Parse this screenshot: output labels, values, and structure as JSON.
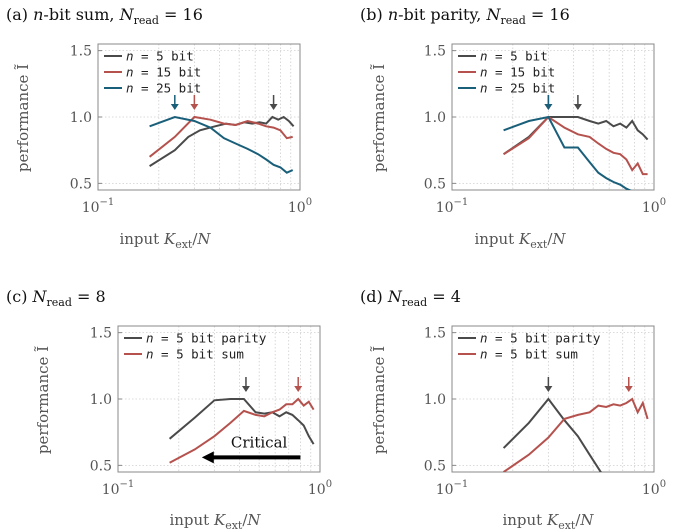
{
  "colors": {
    "gray": "#4a4a4a",
    "red": "#b5524e",
    "blue": "#1a5f7a"
  },
  "chart_data": [
    {
      "id": "a",
      "type": "line",
      "title": "(a) n-bit sum, N_read = 16",
      "title_parts": {
        "prefix": "(a) ",
        "var": "n",
        "mid": "-bit sum, ",
        "N": "N",
        "sub": "read",
        "eq": " = 16"
      },
      "xlabel": "input K_ext/N",
      "ylabel": "performance Ĩ",
      "xscale": "log",
      "xlim": [
        0.1,
        1.0
      ],
      "ylim": [
        0.45,
        1.55
      ],
      "yticks": [
        0.5,
        1.0,
        1.5
      ],
      "ytick_labels": [
        "0.5",
        "1.0",
        "1.5"
      ],
      "show_ylabel": true,
      "legend": "top-left",
      "series": [
        {
          "name": "n = 5 bit",
          "color_key": "gray",
          "x": [
            0.18,
            0.24,
            0.28,
            0.32,
            0.38,
            0.43,
            0.48,
            0.53,
            0.58,
            0.63,
            0.68,
            0.73,
            0.78,
            0.83,
            0.88,
            0.93
          ],
          "y": [
            0.63,
            0.75,
            0.85,
            0.9,
            0.93,
            0.95,
            0.94,
            0.96,
            0.95,
            0.96,
            0.95,
            1.0,
            0.98,
            1.0,
            0.97,
            0.93
          ],
          "arrow_x": 0.74
        },
        {
          "name": "n = 15 bit",
          "color_key": "red",
          "x": [
            0.18,
            0.24,
            0.3,
            0.36,
            0.42,
            0.48,
            0.55,
            0.62,
            0.68,
            0.74,
            0.8,
            0.86,
            0.92
          ],
          "y": [
            0.7,
            0.85,
            1.0,
            0.98,
            0.95,
            0.94,
            0.97,
            0.95,
            0.93,
            0.92,
            0.9,
            0.84,
            0.85
          ],
          "arrow_x": 0.3
        },
        {
          "name": "n = 25 bit",
          "color_key": "blue",
          "x": [
            0.18,
            0.24,
            0.3,
            0.36,
            0.42,
            0.48,
            0.55,
            0.62,
            0.68,
            0.74,
            0.8,
            0.86,
            0.92
          ],
          "y": [
            0.93,
            1.0,
            0.97,
            0.92,
            0.84,
            0.8,
            0.76,
            0.72,
            0.68,
            0.64,
            0.62,
            0.58,
            0.6
          ],
          "arrow_x": 0.24
        }
      ]
    },
    {
      "id": "b",
      "type": "line",
      "title": "(b) n-bit parity, N_read = 16",
      "title_parts": {
        "prefix": "(b) ",
        "var": "n",
        "mid": "-bit parity, ",
        "N": "N",
        "sub": "read",
        "eq": " = 16"
      },
      "xlabel": "input K_ext/N",
      "ylabel": "performance Ĩ",
      "xscale": "log",
      "xlim": [
        0.1,
        1.0
      ],
      "ylim": [
        0.45,
        1.55
      ],
      "yticks": [
        0.5,
        1.0,
        1.5
      ],
      "ytick_labels": [
        "0.5",
        "1.0",
        "1.5"
      ],
      "show_ylabel": true,
      "legend": "top-left",
      "series": [
        {
          "name": "n = 5 bit",
          "color_key": "gray",
          "x": [
            0.18,
            0.24,
            0.3,
            0.36,
            0.42,
            0.48,
            0.53,
            0.58,
            0.63,
            0.68,
            0.73,
            0.78,
            0.83,
            0.88,
            0.93
          ],
          "y": [
            0.72,
            0.85,
            1.0,
            1.0,
            1.0,
            0.97,
            0.95,
            0.97,
            0.93,
            0.95,
            0.92,
            0.97,
            0.9,
            0.87,
            0.83
          ],
          "arrow_x": 0.42
        },
        {
          "name": "n = 15 bit",
          "color_key": "red",
          "x": [
            0.18,
            0.24,
            0.3,
            0.36,
            0.42,
            0.48,
            0.53,
            0.58,
            0.63,
            0.68,
            0.73,
            0.78,
            0.83,
            0.88,
            0.93
          ],
          "y": [
            0.72,
            0.84,
            1.0,
            0.92,
            0.87,
            0.85,
            0.8,
            0.76,
            0.73,
            0.72,
            0.68,
            0.6,
            0.65,
            0.57,
            0.57
          ],
          "arrow_x": 0.3
        },
        {
          "name": "n = 25 bit",
          "color_key": "blue",
          "x": [
            0.18,
            0.24,
            0.3,
            0.36,
            0.42,
            0.48,
            0.53,
            0.58,
            0.63,
            0.68,
            0.73,
            0.78
          ],
          "y": [
            0.9,
            0.97,
            1.0,
            0.77,
            0.77,
            0.66,
            0.58,
            0.54,
            0.51,
            0.49,
            0.46,
            0.44
          ],
          "arrow_x": 0.3
        }
      ]
    },
    {
      "id": "c",
      "type": "line",
      "title": "(c) N_read = 8",
      "title_parts": {
        "prefix": "(c) ",
        "var": "",
        "mid": "",
        "N": "N",
        "sub": "read",
        "eq": " = 8"
      },
      "xlabel": "input K_ext/N",
      "ylabel": "performance Ĩ",
      "xscale": "log",
      "xlim": [
        0.1,
        1.0
      ],
      "ylim": [
        0.45,
        1.55
      ],
      "yticks": [
        0.5,
        1.0,
        1.5
      ],
      "ytick_labels": [
        "0.5",
        "1.0",
        "1.5"
      ],
      "show_ylabel": true,
      "legend": "top-left",
      "annotation": {
        "text": "Critical",
        "arrow_from_x": 0.8,
        "arrow_to_x": 0.26,
        "y": 0.56
      },
      "series": [
        {
          "name": "n = 5 bit parity",
          "color_key": "gray",
          "x": [
            0.18,
            0.24,
            0.3,
            0.36,
            0.42,
            0.48,
            0.53,
            0.58,
            0.63,
            0.68,
            0.73,
            0.78,
            0.83,
            0.88,
            0.93
          ],
          "y": [
            0.7,
            0.86,
            0.99,
            1.0,
            1.0,
            0.9,
            0.89,
            0.9,
            0.87,
            0.9,
            0.88,
            0.84,
            0.8,
            0.72,
            0.66
          ],
          "arrow_x": 0.43
        },
        {
          "name": "n = 5 bit sum",
          "color_key": "red",
          "x": [
            0.18,
            0.24,
            0.3,
            0.36,
            0.42,
            0.48,
            0.53,
            0.58,
            0.63,
            0.68,
            0.73,
            0.78,
            0.83,
            0.88,
            0.93
          ],
          "y": [
            0.52,
            0.62,
            0.72,
            0.82,
            0.91,
            0.88,
            0.87,
            0.9,
            0.92,
            0.96,
            0.96,
            1.0,
            0.95,
            0.98,
            0.92
          ],
          "arrow_x": 0.78
        }
      ]
    },
    {
      "id": "d",
      "type": "line",
      "title": "(d) N_read = 4",
      "title_parts": {
        "prefix": "(d) ",
        "var": "",
        "mid": "",
        "N": "N",
        "sub": "read",
        "eq": " = 4"
      },
      "xlabel": "input K_ext/N",
      "ylabel": "performance Ĩ",
      "xscale": "log",
      "xlim": [
        0.1,
        1.0
      ],
      "ylim": [
        0.45,
        1.55
      ],
      "yticks": [
        0.5,
        1.0,
        1.5
      ],
      "ytick_labels": [
        "0.5",
        "1.0",
        "1.5"
      ],
      "show_ylabel": true,
      "legend": "top-left",
      "series": [
        {
          "name": "n = 5 bit parity",
          "color_key": "gray",
          "x": [
            0.18,
            0.24,
            0.3,
            0.36,
            0.42,
            0.48,
            0.55
          ],
          "y": [
            0.63,
            0.82,
            1.0,
            0.84,
            0.72,
            0.58,
            0.44
          ],
          "arrow_x": 0.3
        },
        {
          "name": "n = 5 bit sum",
          "color_key": "red",
          "x": [
            0.18,
            0.24,
            0.3,
            0.36,
            0.42,
            0.48,
            0.53,
            0.58,
            0.63,
            0.68,
            0.73,
            0.78,
            0.83,
            0.88,
            0.93
          ],
          "y": [
            0.45,
            0.58,
            0.71,
            0.85,
            0.88,
            0.9,
            0.95,
            0.94,
            0.96,
            0.95,
            0.97,
            1.0,
            0.9,
            0.97,
            0.85
          ],
          "arrow_x": 0.75
        }
      ]
    }
  ]
}
